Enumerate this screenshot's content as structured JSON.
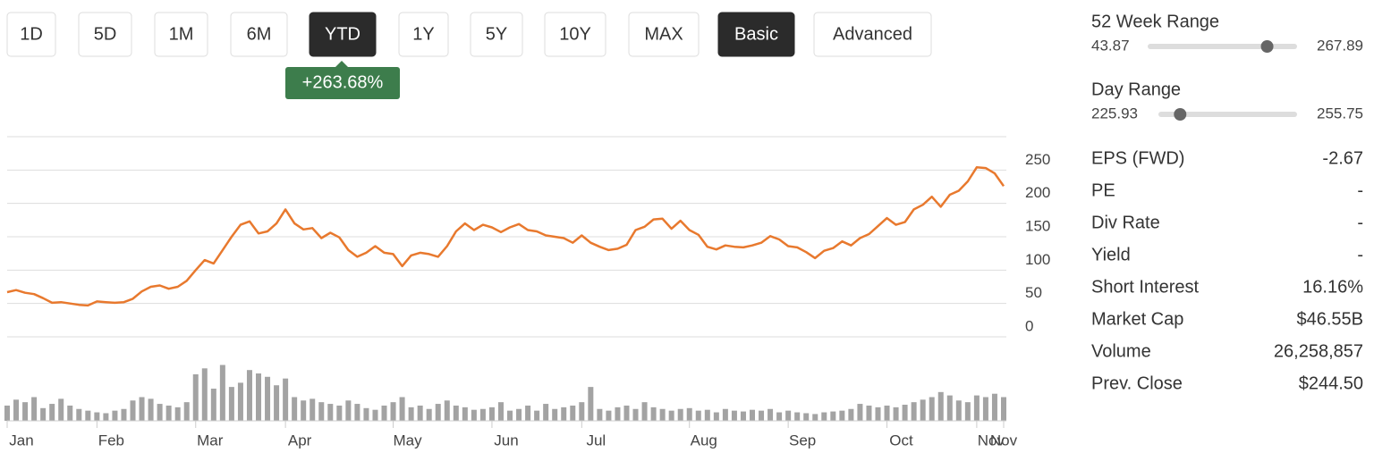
{
  "range_buttons": [
    {
      "label": "1D"
    },
    {
      "label": "5D"
    },
    {
      "label": "1M"
    },
    {
      "label": "6M"
    },
    {
      "label": "YTD",
      "active": true
    },
    {
      "label": "1Y"
    },
    {
      "label": "5Y"
    },
    {
      "label": "10Y"
    },
    {
      "label": "MAX"
    }
  ],
  "mode_buttons": [
    {
      "label": "Basic",
      "active": true
    },
    {
      "label": "Advanced"
    }
  ],
  "change_badge": "+263.68%",
  "chart_data": {
    "type": "line",
    "color": "#e8792e",
    "categories": [
      "Jan",
      null,
      null,
      null,
      null,
      null,
      null,
      null,
      null,
      null,
      "Feb",
      null,
      null,
      null,
      null,
      null,
      null,
      null,
      null,
      null,
      null,
      "Mar",
      null,
      null,
      null,
      null,
      null,
      null,
      null,
      null,
      null,
      "Apr",
      null,
      null,
      null,
      null,
      null,
      null,
      null,
      null,
      null,
      null,
      null,
      "May",
      null,
      null,
      null,
      null,
      null,
      null,
      null,
      null,
      null,
      null,
      "Jun",
      null,
      null,
      null,
      null,
      null,
      null,
      null,
      null,
      null,
      "Jul",
      null,
      null,
      null,
      null,
      null,
      null,
      null,
      null,
      null,
      null,
      null,
      "Aug",
      null,
      null,
      null,
      null,
      null,
      null,
      null,
      null,
      null,
      null,
      "Sep",
      null,
      null,
      null,
      null,
      null,
      null,
      null,
      null,
      null,
      null,
      "Oct",
      null,
      null,
      null,
      null,
      null,
      null,
      null,
      null,
      null,
      "Nov",
      null,
      null,
      "Nov"
    ],
    "values": [
      67,
      70,
      66,
      64,
      58,
      51,
      52,
      50,
      48,
      47,
      53,
      52,
      51,
      52,
      57,
      68,
      75,
      77,
      72,
      75,
      84,
      100,
      115,
      110,
      130,
      150,
      168,
      173,
      155,
      158,
      170,
      191,
      170,
      161,
      163,
      148,
      156,
      149,
      130,
      120,
      126,
      136,
      126,
      124,
      106,
      122,
      126,
      124,
      120,
      136,
      158,
      170,
      160,
      168,
      164,
      157,
      164,
      169,
      160,
      158,
      152,
      150,
      148,
      141,
      152,
      141,
      135,
      130,
      132,
      138,
      160,
      165,
      176,
      177,
      162,
      174,
      160,
      153,
      135,
      131,
      137,
      135,
      134,
      137,
      141,
      151,
      146,
      136,
      134,
      127,
      118,
      129,
      133,
      143,
      137,
      148,
      154,
      166,
      178,
      168,
      172,
      191,
      198,
      210,
      195,
      213,
      219,
      233,
      254,
      253,
      245,
      226
    ],
    "volume": {
      "color": "#a3a3a3",
      "ylim": [
        0,
        75
      ],
      "values": [
        18,
        25,
        22,
        28,
        15,
        20,
        26,
        18,
        14,
        12,
        10,
        9,
        12,
        14,
        24,
        28,
        26,
        20,
        18,
        16,
        22,
        55,
        62,
        38,
        66,
        40,
        45,
        60,
        56,
        52,
        42,
        50,
        28,
        24,
        26,
        22,
        20,
        18,
        24,
        20,
        15,
        13,
        18,
        22,
        28,
        16,
        18,
        14,
        20,
        24,
        18,
        16,
        13,
        14,
        16,
        22,
        12,
        14,
        18,
        12,
        20,
        14,
        16,
        18,
        22,
        40,
        14,
        12,
        16,
        18,
        14,
        22,
        16,
        14,
        12,
        14,
        15,
        12,
        13,
        10,
        14,
        12,
        11,
        13,
        12,
        14,
        10,
        12,
        10,
        9,
        8,
        10,
        11,
        12,
        14,
        20,
        18,
        16,
        18,
        16,
        19,
        22,
        25,
        28,
        34,
        30,
        24,
        22,
        30,
        28,
        32,
        28
      ]
    },
    "ylim": [
      0,
      300
    ],
    "yticks": [
      0,
      50,
      100,
      150,
      200,
      250
    ],
    "grid": true
  },
  "ranges": [
    {
      "label": "52 Week Range",
      "low": 43.87,
      "high": 267.89,
      "marker": 223
    },
    {
      "label": "Day Range",
      "low": 225.93,
      "high": 255.75,
      "marker": 230.6
    }
  ],
  "stats": [
    [
      "EPS (FWD)",
      "-2.67"
    ],
    [
      "PE",
      "-"
    ],
    [
      "Div Rate",
      "-"
    ],
    [
      "Yield",
      "-"
    ],
    [
      "Short Interest",
      "16.16%"
    ],
    [
      "Market Cap",
      "$46.55B"
    ],
    [
      "Volume",
      "26,258,857"
    ],
    [
      "Prev. Close",
      "$244.50"
    ]
  ]
}
